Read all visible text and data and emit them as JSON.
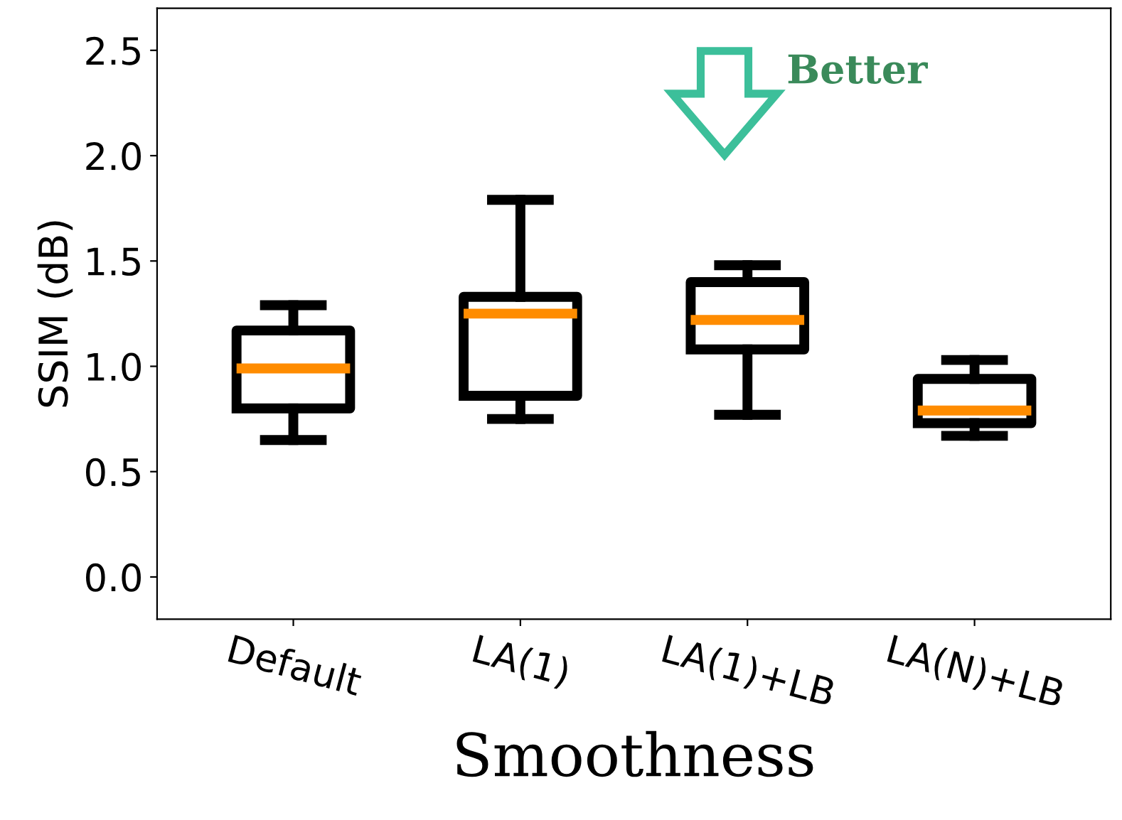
{
  "chart_data": {
    "type": "box",
    "xlabel": "Smoothness",
    "ylabel": "SSIM (dB)",
    "categories": [
      "Default",
      "LA(1)",
      "LA(1)+LB",
      "LA(N)+LB"
    ],
    "boxes": [
      {
        "low": 0.65,
        "q1": 0.8,
        "median": 0.99,
        "q3": 1.17,
        "high": 1.29
      },
      {
        "low": 0.75,
        "q1": 0.86,
        "median": 1.25,
        "q3": 1.33,
        "high": 1.79
      },
      {
        "low": 0.77,
        "q1": 1.08,
        "median": 1.22,
        "q3": 1.4,
        "high": 1.48
      },
      {
        "low": 0.67,
        "q1": 0.73,
        "median": 0.79,
        "q3": 0.94,
        "high": 1.03
      }
    ],
    "ylim": [
      -0.2,
      2.7
    ],
    "yticks": [
      {
        "value": 0,
        "label": "0.0"
      },
      0.5,
      {
        "value": 1,
        "label": "1.0"
      },
      1.5,
      {
        "value": 2,
        "label": "2.0"
      },
      2.5
    ],
    "grid": false,
    "annotations": [
      "Better"
    ]
  }
}
